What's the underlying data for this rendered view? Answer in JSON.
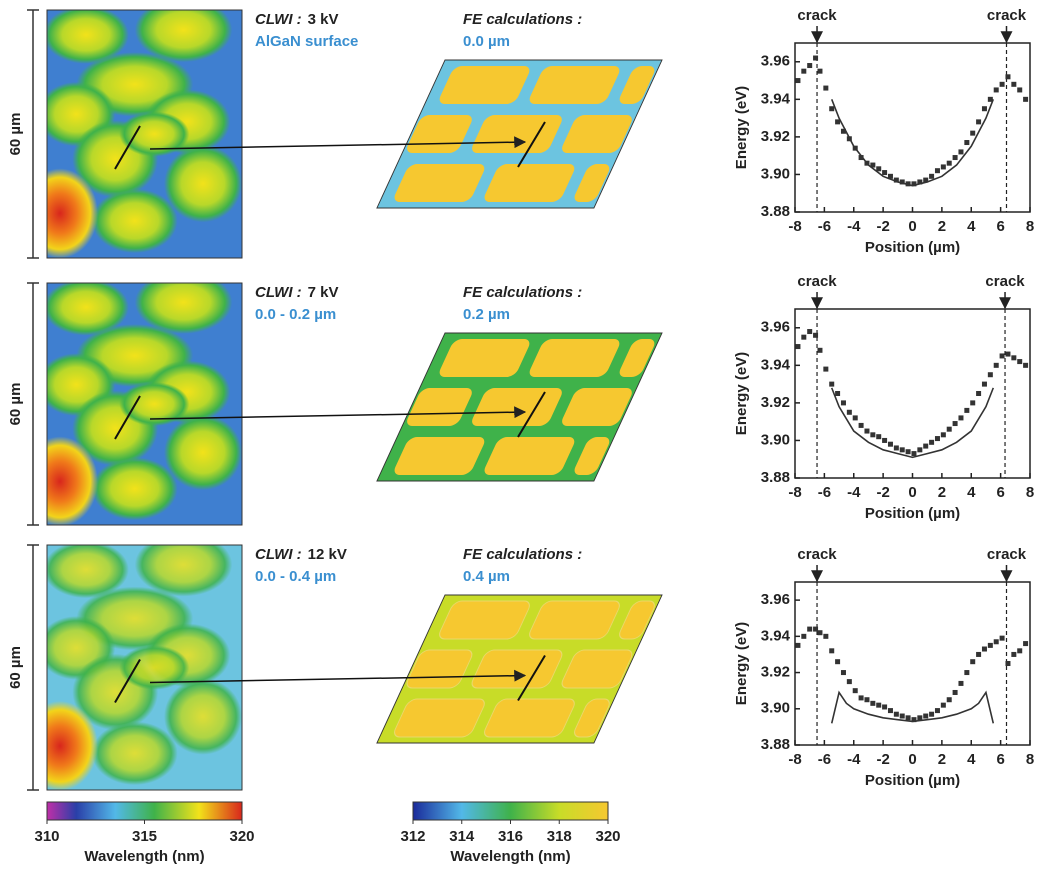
{
  "panels": [
    {
      "scale_label": "60 µm",
      "clwi_label": "CLWI :",
      "clwi_kv": "3 kV",
      "clwi_depth": "AlGaN surface",
      "fe_label": "FE calculations :",
      "fe_depth": "0.0 µm"
    },
    {
      "scale_label": "60 µm",
      "clwi_label": "CLWI :",
      "clwi_kv": "7 kV",
      "clwi_depth": "0.0 - 0.2 µm",
      "fe_label": "FE calculations :",
      "fe_depth": "0.2 µm"
    },
    {
      "scale_label": "60 µm",
      "clwi_label": "CLWI :",
      "clwi_kv": "12 kV",
      "clwi_depth": "0.0 - 0.4 µm",
      "fe_label": "FE calculations :",
      "fe_depth": "0.4 µm"
    }
  ],
  "colorbars": [
    {
      "lim": [
        310,
        320
      ],
      "ticks": [
        310,
        315,
        320
      ],
      "label": "Wavelength (nm)"
    },
    {
      "lim": [
        312,
        320
      ],
      "ticks": [
        312,
        314,
        316,
        318,
        320
      ],
      "label": "Wavelength (nm)"
    }
  ],
  "chart_data": [
    {
      "type": "scatter",
      "xlabel": "Position (µm)",
      "ylabel": "Energy (eV)",
      "xlim": [
        -8,
        8
      ],
      "ylim": [
        3.88,
        3.97
      ],
      "xticks": [
        -8,
        -6,
        -4,
        -2,
        0,
        2,
        4,
        6,
        8
      ],
      "yticks": [
        3.88,
        {
          "value": 3.9,
          "label": "3.90"
        },
        3.92,
        3.94,
        3.96
      ],
      "vlines": [
        {
          "x": -6.5,
          "label": "crack"
        },
        {
          "x": 6.4,
          "label": "crack"
        }
      ],
      "series": [
        {
          "style": "markers",
          "color": "#333333",
          "x": [
            -7.8,
            -7.4,
            -7.0,
            -6.6,
            -6.3,
            -5.9,
            -5.5,
            -5.1,
            -4.7,
            -4.3,
            -3.9,
            -3.5,
            -3.1,
            -2.7,
            -2.3,
            -1.9,
            -1.5,
            -1.1,
            -0.7,
            -0.3,
            0.1,
            0.5,
            0.9,
            1.3,
            1.7,
            2.1,
            2.5,
            2.9,
            3.3,
            3.7,
            4.1,
            4.5,
            4.9,
            5.3,
            5.7,
            6.1,
            6.5,
            6.9,
            7.3,
            7.7
          ],
          "values": [
            3.95,
            3.955,
            3.958,
            3.962,
            3.955,
            3.946,
            3.935,
            3.928,
            3.923,
            3.919,
            3.914,
            3.909,
            3.906,
            3.905,
            3.903,
            3.901,
            3.899,
            3.897,
            3.896,
            3.895,
            3.895,
            3.896,
            3.897,
            3.899,
            3.902,
            3.904,
            3.906,
            3.909,
            3.912,
            3.917,
            3.922,
            3.928,
            3.935,
            3.94,
            3.945,
            3.948,
            3.952,
            3.948,
            3.945,
            3.94
          ]
        },
        {
          "style": "line",
          "color": "#333333",
          "x": [
            -5.5,
            -5,
            -4,
            -3,
            -2,
            -1,
            0,
            1,
            2,
            3,
            4,
            5,
            5.5
          ],
          "values": [
            3.94,
            3.93,
            3.915,
            3.905,
            3.899,
            3.896,
            3.894,
            3.896,
            3.899,
            3.905,
            3.915,
            3.93,
            3.94
          ]
        }
      ]
    },
    {
      "type": "scatter",
      "xlabel": "Position (µm)",
      "ylabel": "Energy (eV)",
      "xlim": [
        -8,
        8
      ],
      "ylim": [
        3.88,
        3.97
      ],
      "xticks": [
        -8,
        -6,
        -4,
        -2,
        0,
        2,
        4,
        6,
        8
      ],
      "yticks": [
        3.88,
        {
          "value": 3.9,
          "label": "3.90"
        },
        3.92,
        3.94,
        3.96
      ],
      "vlines": [
        {
          "x": -6.5,
          "label": "crack"
        },
        {
          "x": 6.3,
          "label": "crack"
        }
      ],
      "series": [
        {
          "style": "markers",
          "color": "#333333",
          "x": [
            -7.8,
            -7.4,
            -7.0,
            -6.6,
            -6.3,
            -5.9,
            -5.5,
            -5.1,
            -4.7,
            -4.3,
            -3.9,
            -3.5,
            -3.1,
            -2.7,
            -2.3,
            -1.9,
            -1.5,
            -1.1,
            -0.7,
            -0.3,
            0.1,
            0.5,
            0.9,
            1.3,
            1.7,
            2.1,
            2.5,
            2.9,
            3.3,
            3.7,
            4.1,
            4.5,
            4.9,
            5.3,
            5.7,
            6.1,
            6.5,
            6.9,
            7.3,
            7.7
          ],
          "values": [
            3.95,
            3.955,
            3.958,
            3.956,
            3.948,
            3.938,
            3.93,
            3.925,
            3.92,
            3.915,
            3.912,
            3.908,
            3.905,
            3.903,
            3.902,
            3.9,
            3.898,
            3.896,
            3.895,
            3.894,
            3.893,
            3.895,
            3.897,
            3.899,
            3.901,
            3.903,
            3.906,
            3.909,
            3.912,
            3.916,
            3.92,
            3.925,
            3.93,
            3.935,
            3.94,
            3.945,
            3.946,
            3.944,
            3.942,
            3.94
          ]
        },
        {
          "style": "line",
          "color": "#333333",
          "x": [
            -5.5,
            -5,
            -4,
            -3,
            -2,
            -1,
            0,
            1,
            2,
            3,
            4,
            5,
            5.5
          ],
          "values": [
            3.928,
            3.918,
            3.905,
            3.899,
            3.895,
            3.893,
            3.891,
            3.893,
            3.895,
            3.899,
            3.905,
            3.918,
            3.928
          ]
        }
      ]
    },
    {
      "type": "scatter",
      "xlabel": "Position (µm)",
      "ylabel": "Energy (eV)",
      "xlim": [
        -8,
        8
      ],
      "ylim": [
        3.88,
        3.97
      ],
      "xticks": [
        -8,
        -6,
        -4,
        -2,
        0,
        2,
        4,
        6,
        8
      ],
      "yticks": [
        3.88,
        {
          "value": 3.9,
          "label": "3.90"
        },
        3.92,
        3.94,
        3.96
      ],
      "vlines": [
        {
          "x": -6.5,
          "label": "crack"
        },
        {
          "x": 6.4,
          "label": "crack"
        }
      ],
      "series": [
        {
          "style": "markers",
          "color": "#333333",
          "x": [
            -7.8,
            -7.4,
            -7.0,
            -6.6,
            -6.3,
            -5.9,
            -5.5,
            -5.1,
            -4.7,
            -4.3,
            -3.9,
            -3.5,
            -3.1,
            -2.7,
            -2.3,
            -1.9,
            -1.5,
            -1.1,
            -0.7,
            -0.3,
            0.1,
            0.5,
            0.9,
            1.3,
            1.7,
            2.1,
            2.5,
            2.9,
            3.3,
            3.7,
            4.1,
            4.5,
            4.9,
            5.3,
            5.7,
            6.1,
            6.5,
            6.9,
            7.3,
            7.7
          ],
          "values": [
            3.935,
            3.94,
            3.944,
            3.944,
            3.942,
            3.94,
            3.932,
            3.926,
            3.92,
            3.915,
            3.91,
            3.906,
            3.905,
            3.903,
            3.902,
            3.901,
            3.899,
            3.897,
            3.896,
            3.895,
            3.894,
            3.895,
            3.896,
            3.897,
            3.899,
            3.902,
            3.905,
            3.909,
            3.914,
            3.92,
            3.926,
            3.93,
            3.933,
            3.935,
            3.937,
            3.939,
            3.925,
            3.93,
            3.932,
            3.936
          ]
        },
        {
          "style": "line",
          "color": "#333333",
          "x": [
            -5.5,
            -5,
            -4.5,
            -4,
            -3,
            -2,
            -1,
            0,
            1,
            2,
            3,
            4,
            4.5,
            5,
            5.5
          ],
          "values": [
            3.892,
            3.909,
            3.903,
            3.9,
            3.897,
            3.895,
            3.894,
            3.893,
            3.894,
            3.895,
            3.897,
            3.9,
            3.903,
            3.909,
            3.892
          ]
        }
      ]
    }
  ]
}
